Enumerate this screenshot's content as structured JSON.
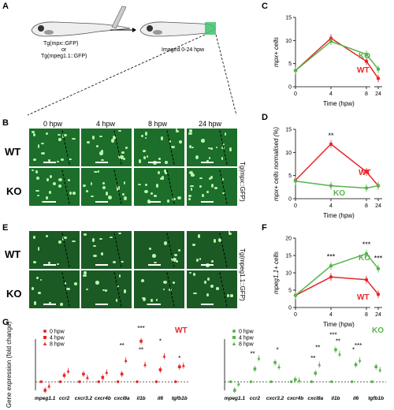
{
  "panel_labels": {
    "A": "A",
    "B": "B",
    "C": "C",
    "D": "D",
    "E": "E",
    "F": "F",
    "G": "G"
  },
  "panelA": {
    "line1": "Tg(mpx::GFP)",
    "line2": "or",
    "line3": "Tg(mpeg1.1::GFP)",
    "imaged": "Imaged 0-24 hpw"
  },
  "micro": {
    "times": [
      "0 hpw",
      "4 hpw",
      "8 hpw",
      "24 hpw"
    ],
    "wt": "WT",
    "ko": "KO",
    "side_B": "Tg(mpx::GFP)",
    "side_E": "Tg(mpeg1.1::GFP)"
  },
  "colors": {
    "wt": "#e8262a",
    "ko": "#56b34b",
    "bg_micro": "#1c6e2a"
  },
  "chart_data": [
    {
      "panel": "C",
      "type": "line",
      "xlabel": "Time (hpw)",
      "ylabel": "mpx+ cells",
      "x": [
        0,
        4,
        8,
        24
      ],
      "xticks": [
        "0",
        "4",
        "8",
        "24"
      ],
      "ylim": [
        0,
        15
      ],
      "yticks": [
        "0",
        "5",
        "10",
        "15"
      ],
      "series": [
        {
          "name": "WT",
          "values": [
            3.5,
            10.5,
            5.5,
            1.8
          ]
        },
        {
          "name": "KO",
          "values": [
            3.5,
            9.8,
            7.0,
            3.8
          ]
        }
      ]
    },
    {
      "panel": "D",
      "type": "line",
      "xlabel": "Time (hpw)",
      "ylabel": "mpx+ cells normalised (%)",
      "x": [
        0,
        4,
        8,
        24
      ],
      "xticks": [
        "0",
        "4",
        "8",
        "24"
      ],
      "ylim": [
        0,
        15
      ],
      "yticks": [
        "0",
        "5",
        "10",
        "15"
      ],
      "series": [
        {
          "name": "WT",
          "values": [
            4.0,
            11.8,
            5.8,
            2.8
          ]
        },
        {
          "name": "KO",
          "values": [
            3.8,
            2.8,
            2.3,
            2.8
          ]
        }
      ],
      "annotations": [
        "**"
      ]
    },
    {
      "panel": "F",
      "type": "line",
      "xlabel": "Time (hpw)",
      "ylabel": "mpeg1.1+ cells",
      "x": [
        0,
        4,
        8,
        24
      ],
      "xticks": [
        "0",
        "4",
        "8",
        "24"
      ],
      "ylim": [
        0,
        20
      ],
      "yticks": [
        "0",
        "5",
        "10",
        "15",
        "20"
      ],
      "series": [
        {
          "name": "WT",
          "values": [
            3.5,
            8.8,
            8.0,
            3.8
          ]
        },
        {
          "name": "KO",
          "values": [
            3.5,
            12.0,
            15.5,
            11.2
          ]
        }
      ],
      "annotations": [
        "***",
        "***",
        "***"
      ]
    },
    {
      "panel": "G-WT",
      "type": "scatter",
      "ylabel": "Gene expression (fold change)",
      "categories": [
        "mpeg1.1",
        "ccr2",
        "cxcr3.2",
        "cxcr4b",
        "cxcl8a",
        "il1b",
        "il6",
        "tgfb1b"
      ],
      "ylim": [
        -2,
        10
      ],
      "title": "WT",
      "series": [
        {
          "name": "0 hpw",
          "values": [
            0,
            0,
            0,
            0,
            0,
            0,
            0,
            0
          ]
        },
        {
          "name": "4 hpw",
          "values": [
            -2.0,
            1.5,
            1.8,
            1.0,
            1.8,
            9.5,
            2.8,
            3.5
          ]
        },
        {
          "name": "8 hpw",
          "values": [
            -1.0,
            2.5,
            1.0,
            2.2,
            5.0,
            4.0,
            6.0,
            3.8
          ]
        }
      ],
      "annotations": [
        "**",
        "***",
        "**",
        "*",
        "*"
      ]
    },
    {
      "panel": "G-KO",
      "type": "scatter",
      "categories": [
        "mpeg1.1",
        "ccr2",
        "cxcr3.2",
        "cxcr4b",
        "cxcl8a",
        "il1b",
        "il6",
        "tgfb1b"
      ],
      "ylim": [
        -2,
        10
      ],
      "title": "KO",
      "series": [
        {
          "name": "0 hpw",
          "values": [
            0,
            0,
            0,
            0,
            0,
            0,
            0,
            0
          ]
        },
        {
          "name": "4 hpw",
          "values": [
            -2.0,
            3.0,
            4.5,
            0.5,
            2.0,
            7.5,
            4.0,
            3.5
          ]
        },
        {
          "name": "8 hpw",
          "values": [
            -0.5,
            5.5,
            3.5,
            0.3,
            4.0,
            6.5,
            5.0,
            2.8
          ]
        }
      ],
      "annotations": [
        "**",
        "*",
        "**",
        "**",
        "***",
        "**",
        "*",
        "***"
      ]
    }
  ]
}
